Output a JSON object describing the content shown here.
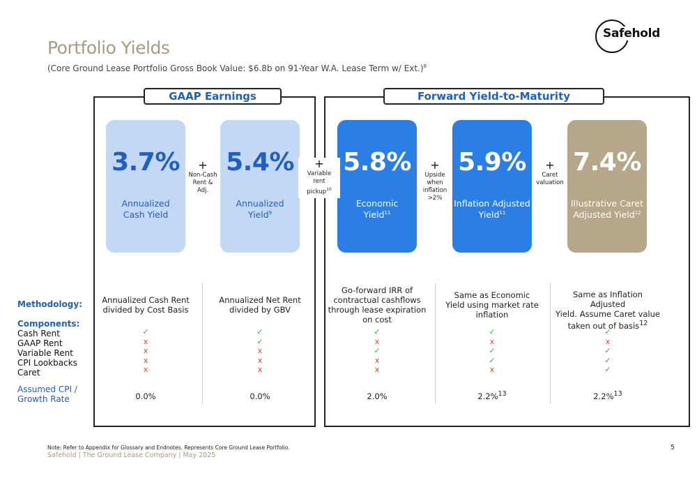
{
  "header": {
    "title": "Portfolio Yields",
    "subtitle": "(Core Ground Lease Portfolio Gross Book Value: $6.8b on 91-Year W.A. Lease Term w/ Ext.)",
    "subtitle_sup": "8"
  },
  "logo": {
    "text": "Safehold"
  },
  "panels": {
    "left_title": "GAAP Earnings",
    "right_title": "Forward Yield-to-Maturity"
  },
  "cards": [
    {
      "value": "3.7%",
      "label_line1": "Annualized",
      "label_line2": "Cash Yield",
      "label_sup": ""
    },
    {
      "value": "5.4%",
      "label_line1": "Annualized",
      "label_line2": "Yield",
      "label_sup": "9"
    },
    {
      "value": "5.8%",
      "label_line1": "Economic",
      "label_line2": "Yield",
      "label_sup": "11"
    },
    {
      "value": "5.9%",
      "label_line1": "Inflation Adjusted",
      "label_line2": "Yield",
      "label_sup": "11"
    },
    {
      "value": "7.4%",
      "label_line1": "Illustrative Caret",
      "label_line2": "Adjusted Yield",
      "label_sup": "12"
    }
  ],
  "operators": [
    {
      "symbol": "+",
      "l1": "Non-Cash",
      "l2": "Rent &",
      "l3": "Adj.",
      "sup": ""
    },
    {
      "symbol": "+",
      "l1": "Variable",
      "l2": "rent",
      "l3": "pickup",
      "sup": "10"
    },
    {
      "symbol": "+",
      "l1": "Upside",
      "l2": "when",
      "l3": "inflation",
      "l4": ">2%",
      "sup": ""
    },
    {
      "symbol": "+",
      "l1": "Caret",
      "l2": "valuation",
      "l3": "",
      "sup": ""
    }
  ],
  "row_labels": {
    "methodology": "Methodology:",
    "components": "Components:",
    "component_items": [
      "Cash Rent",
      "GAAP Rent",
      "Variable Rent",
      "CPI Lookbacks",
      "Caret"
    ],
    "cpi_line1": "Assumed CPI /",
    "cpi_line2": "Growth Rate"
  },
  "methodology": [
    {
      "l1": "Annualized Cash Rent",
      "l2": "divided by Cost Basis",
      "l3": "",
      "l4": ""
    },
    {
      "l1": "Annualized Net Rent",
      "l2": "divided by GBV",
      "l3": "",
      "l4": ""
    },
    {
      "l1": "Go-forward IRR of",
      "l2": "contractual cashflows",
      "l3": "through lease expiration",
      "l4": "on cost"
    },
    {
      "l1": "Same as Economic",
      "l2": "Yield using market rate",
      "l3": "inflation",
      "l4": ""
    },
    {
      "l1": "Same as Inflation Adjusted",
      "l2": "Yield. Assume Caret value",
      "l3": "taken out of basis",
      "l3_sup": "12",
      "l4": ""
    }
  ],
  "components": [
    [
      "check",
      "x",
      "x",
      "x",
      "x"
    ],
    [
      "check",
      "check",
      "x",
      "x",
      "x"
    ],
    [
      "check",
      "x",
      "check",
      "x",
      "x"
    ],
    [
      "check",
      "x",
      "check",
      "check",
      "x"
    ],
    [
      "check",
      "x",
      "check",
      "check",
      "check"
    ]
  ],
  "symbols": {
    "check": "✓",
    "x": "x"
  },
  "cpi": [
    {
      "value": "0.0%",
      "sup": ""
    },
    {
      "value": "0.0%",
      "sup": ""
    },
    {
      "value": "2.0%",
      "sup": ""
    },
    {
      "value": "2.2%",
      "sup": "13"
    },
    {
      "value": "2.2%",
      "sup": "13"
    }
  ],
  "footer": {
    "note": "Note: Refer to Appendix for Glossary and Endnotes. Represents Core Ground Lease Portfolio.",
    "company": "Safehold | The Ground Lease Company | May 2025",
    "page": "5"
  },
  "colors": {
    "title": "#a89a82",
    "accent_blue": "#1f5fc2",
    "light_card": "#c3d8f5",
    "blue_card": "#2a7ee4",
    "tan_card": "#b6a68a",
    "check": "#3aa63a",
    "x": "#e23b3b"
  }
}
